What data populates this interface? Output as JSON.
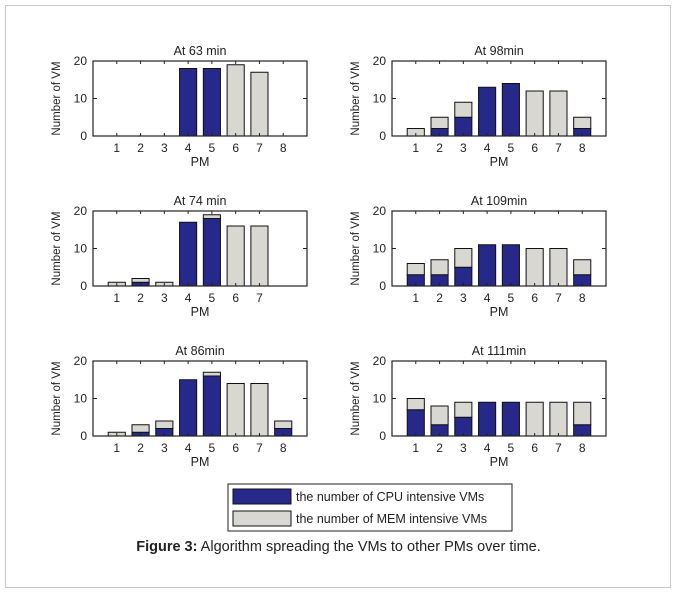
{
  "colors": {
    "cpu": "#26288a",
    "mem": "#d9d7d2",
    "axis": "#222222"
  },
  "chart_data": [
    {
      "type": "bar",
      "stacked": true,
      "title": "At 63 min",
      "xlabel": "PM",
      "ylabel": "Number of VM",
      "ylim": [
        0,
        20
      ],
      "categories": [
        "1",
        "2",
        "3",
        "4",
        "5",
        "6",
        "7",
        "8"
      ],
      "series": [
        {
          "name": "the number of CPU intensive VMs",
          "values": [
            0,
            0,
            0,
            18,
            18,
            0,
            0,
            0
          ]
        },
        {
          "name": "the number of MEM intensive VMs",
          "values": [
            0,
            0,
            0,
            0,
            0,
            19,
            17,
            0
          ]
        }
      ]
    },
    {
      "type": "bar",
      "stacked": true,
      "title": "At 98min",
      "xlabel": "PM",
      "ylabel": "Number of VM",
      "ylim": [
        0,
        20
      ],
      "categories": [
        "1",
        "2",
        "3",
        "4",
        "5",
        "6",
        "7",
        "8"
      ],
      "series": [
        {
          "name": "the number of CPU intensive VMs",
          "values": [
            0,
            2,
            5,
            13,
            14,
            0,
            0,
            2
          ]
        },
        {
          "name": "the number of MEM intensive VMs",
          "values": [
            2,
            3,
            4,
            0,
            0,
            12,
            12,
            3
          ]
        }
      ]
    },
    {
      "type": "bar",
      "stacked": true,
      "title": "At 74 min",
      "xlabel": "PM",
      "ylabel": "Number of VM",
      "ylim": [
        0,
        20
      ],
      "categories": [
        "1",
        "2",
        "3",
        "4",
        "5",
        "6",
        "7"
      ],
      "series": [
        {
          "name": "the number of CPU intensive VMs",
          "values": [
            0,
            1,
            0,
            17,
            18,
            0,
            0
          ]
        },
        {
          "name": "the number of MEM intensive VMs",
          "values": [
            1,
            1,
            1,
            0,
            1,
            16,
            16
          ]
        }
      ]
    },
    {
      "type": "bar",
      "stacked": true,
      "title": "At 109min",
      "xlabel": "PM",
      "ylabel": "Number of VM",
      "ylim": [
        0,
        20
      ],
      "categories": [
        "1",
        "2",
        "3",
        "4",
        "5",
        "6",
        "7",
        "8"
      ],
      "series": [
        {
          "name": "the number of CPU intensive VMs",
          "values": [
            3,
            3,
            5,
            11,
            11,
            0,
            0,
            3
          ]
        },
        {
          "name": "the number of MEM intensive VMs",
          "values": [
            3,
            4,
            5,
            0,
            0,
            10,
            10,
            4
          ]
        }
      ]
    },
    {
      "type": "bar",
      "stacked": true,
      "title": "At 86min",
      "xlabel": "PM",
      "ylabel": "Number of VM",
      "ylim": [
        0,
        20
      ],
      "categories": [
        "1",
        "2",
        "3",
        "4",
        "5",
        "6",
        "7",
        "8"
      ],
      "series": [
        {
          "name": "the number of CPU intensive VMs",
          "values": [
            0,
            1,
            2,
            15,
            16,
            0,
            0,
            2
          ]
        },
        {
          "name": "the number of MEM intensive VMs",
          "values": [
            1,
            2,
            2,
            0,
            1,
            14,
            14,
            2
          ]
        }
      ]
    },
    {
      "type": "bar",
      "stacked": true,
      "title": "At 111min",
      "xlabel": "PM",
      "ylabel": "Number of VM",
      "ylim": [
        0,
        20
      ],
      "categories": [
        "1",
        "2",
        "3",
        "4",
        "5",
        "6",
        "7",
        "8"
      ],
      "series": [
        {
          "name": "the number of CPU intensive VMs",
          "values": [
            7,
            3,
            5,
            9,
            9,
            0,
            0,
            3
          ]
        },
        {
          "name": "the number of MEM intensive VMs",
          "values": [
            3,
            5,
            4,
            0,
            0,
            9,
            9,
            6
          ]
        }
      ]
    }
  ],
  "yticks": [
    "0",
    "10",
    "20"
  ],
  "legend": {
    "cpu_label": "the number of CPU intensive VMs",
    "mem_label": "the number of MEM intensive VMs"
  },
  "caption": {
    "bold": "Figure 3:",
    "text": " Algorithm spreading the VMs to other PMs over time."
  }
}
